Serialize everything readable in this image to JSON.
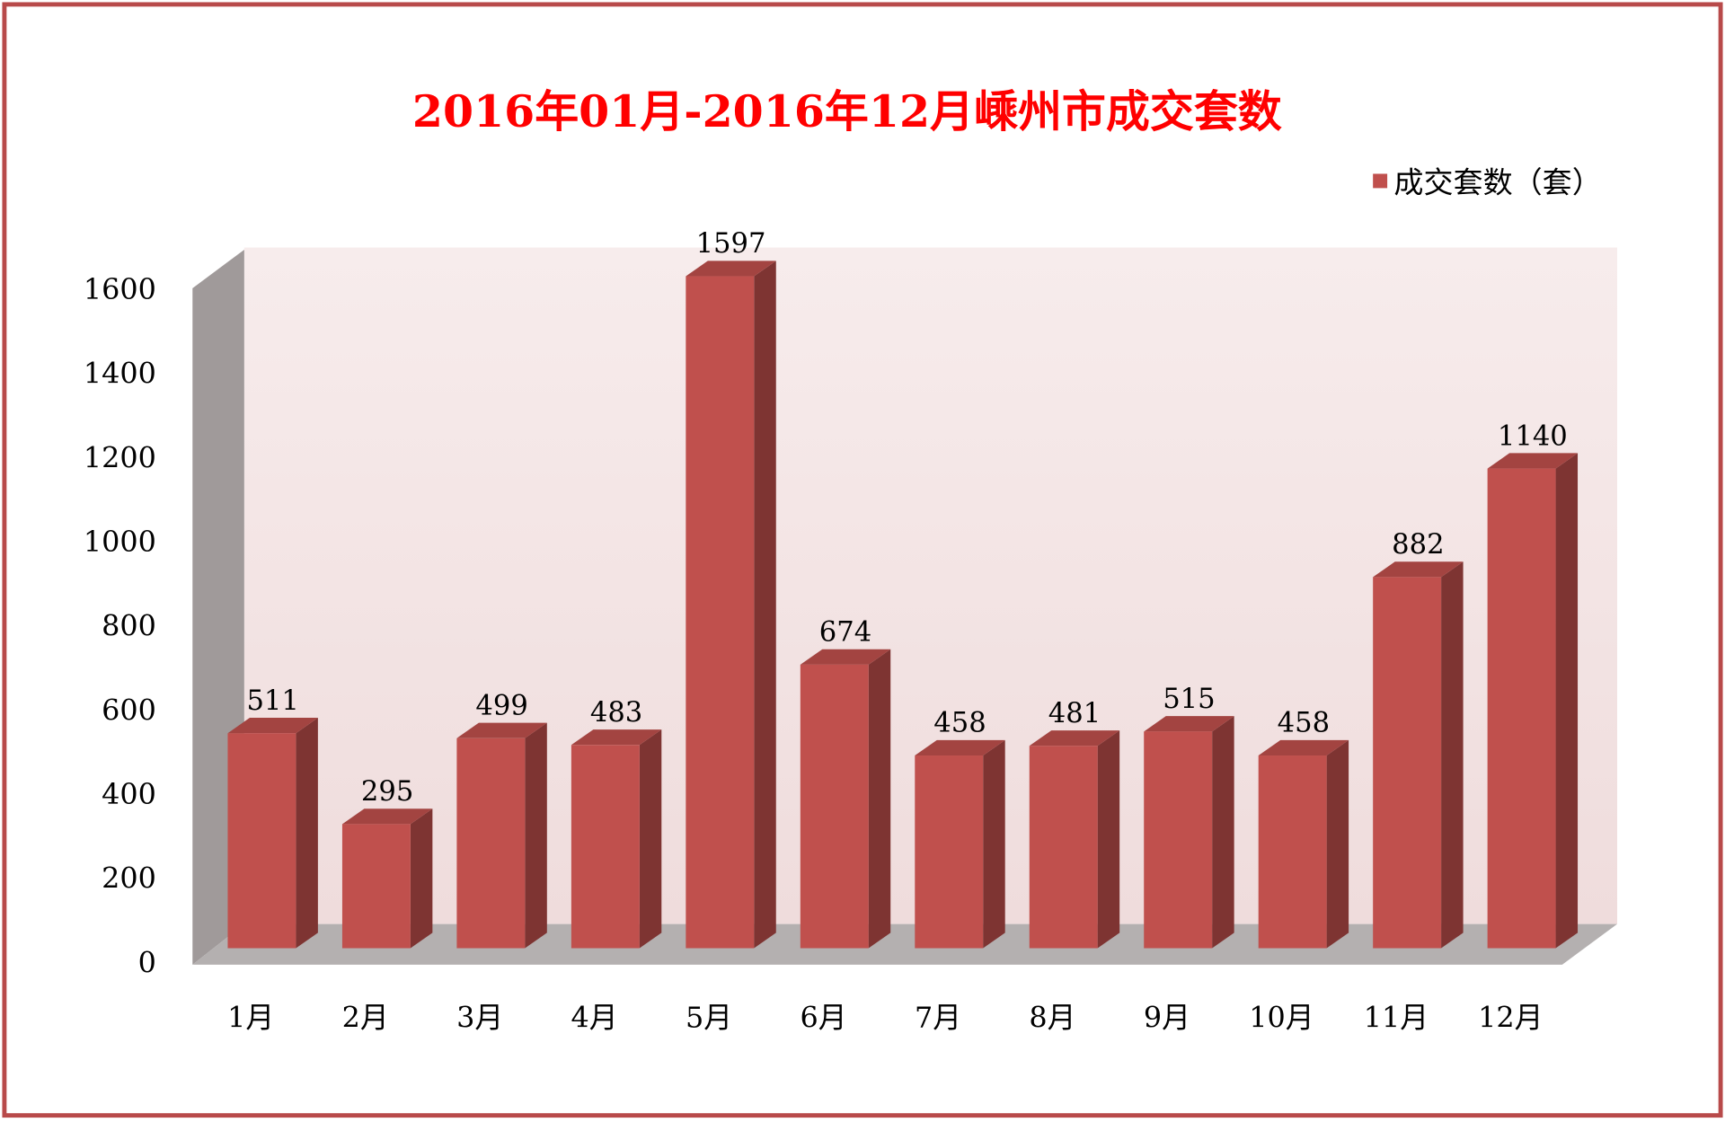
{
  "chart_data": {
    "type": "bar3d",
    "title": "2016年01月-2016年12月嵊州市成交套数",
    "categories": [
      "1月",
      "2月",
      "3月",
      "4月",
      "5月",
      "6月",
      "7月",
      "8月",
      "9月",
      "10月",
      "11月",
      "12月"
    ],
    "series": [
      {
        "name": "成交套数（套）",
        "color": "#c0504d",
        "values": [
          511,
          295,
          499,
          483,
          1597,
          674,
          458,
          481,
          515,
          458,
          882,
          1140
        ]
      }
    ],
    "ylim": [
      0,
      1600
    ],
    "yticks": [
      0,
      200,
      400,
      600,
      800,
      1000,
      1200,
      1400,
      1600
    ],
    "legend": "top-right"
  }
}
